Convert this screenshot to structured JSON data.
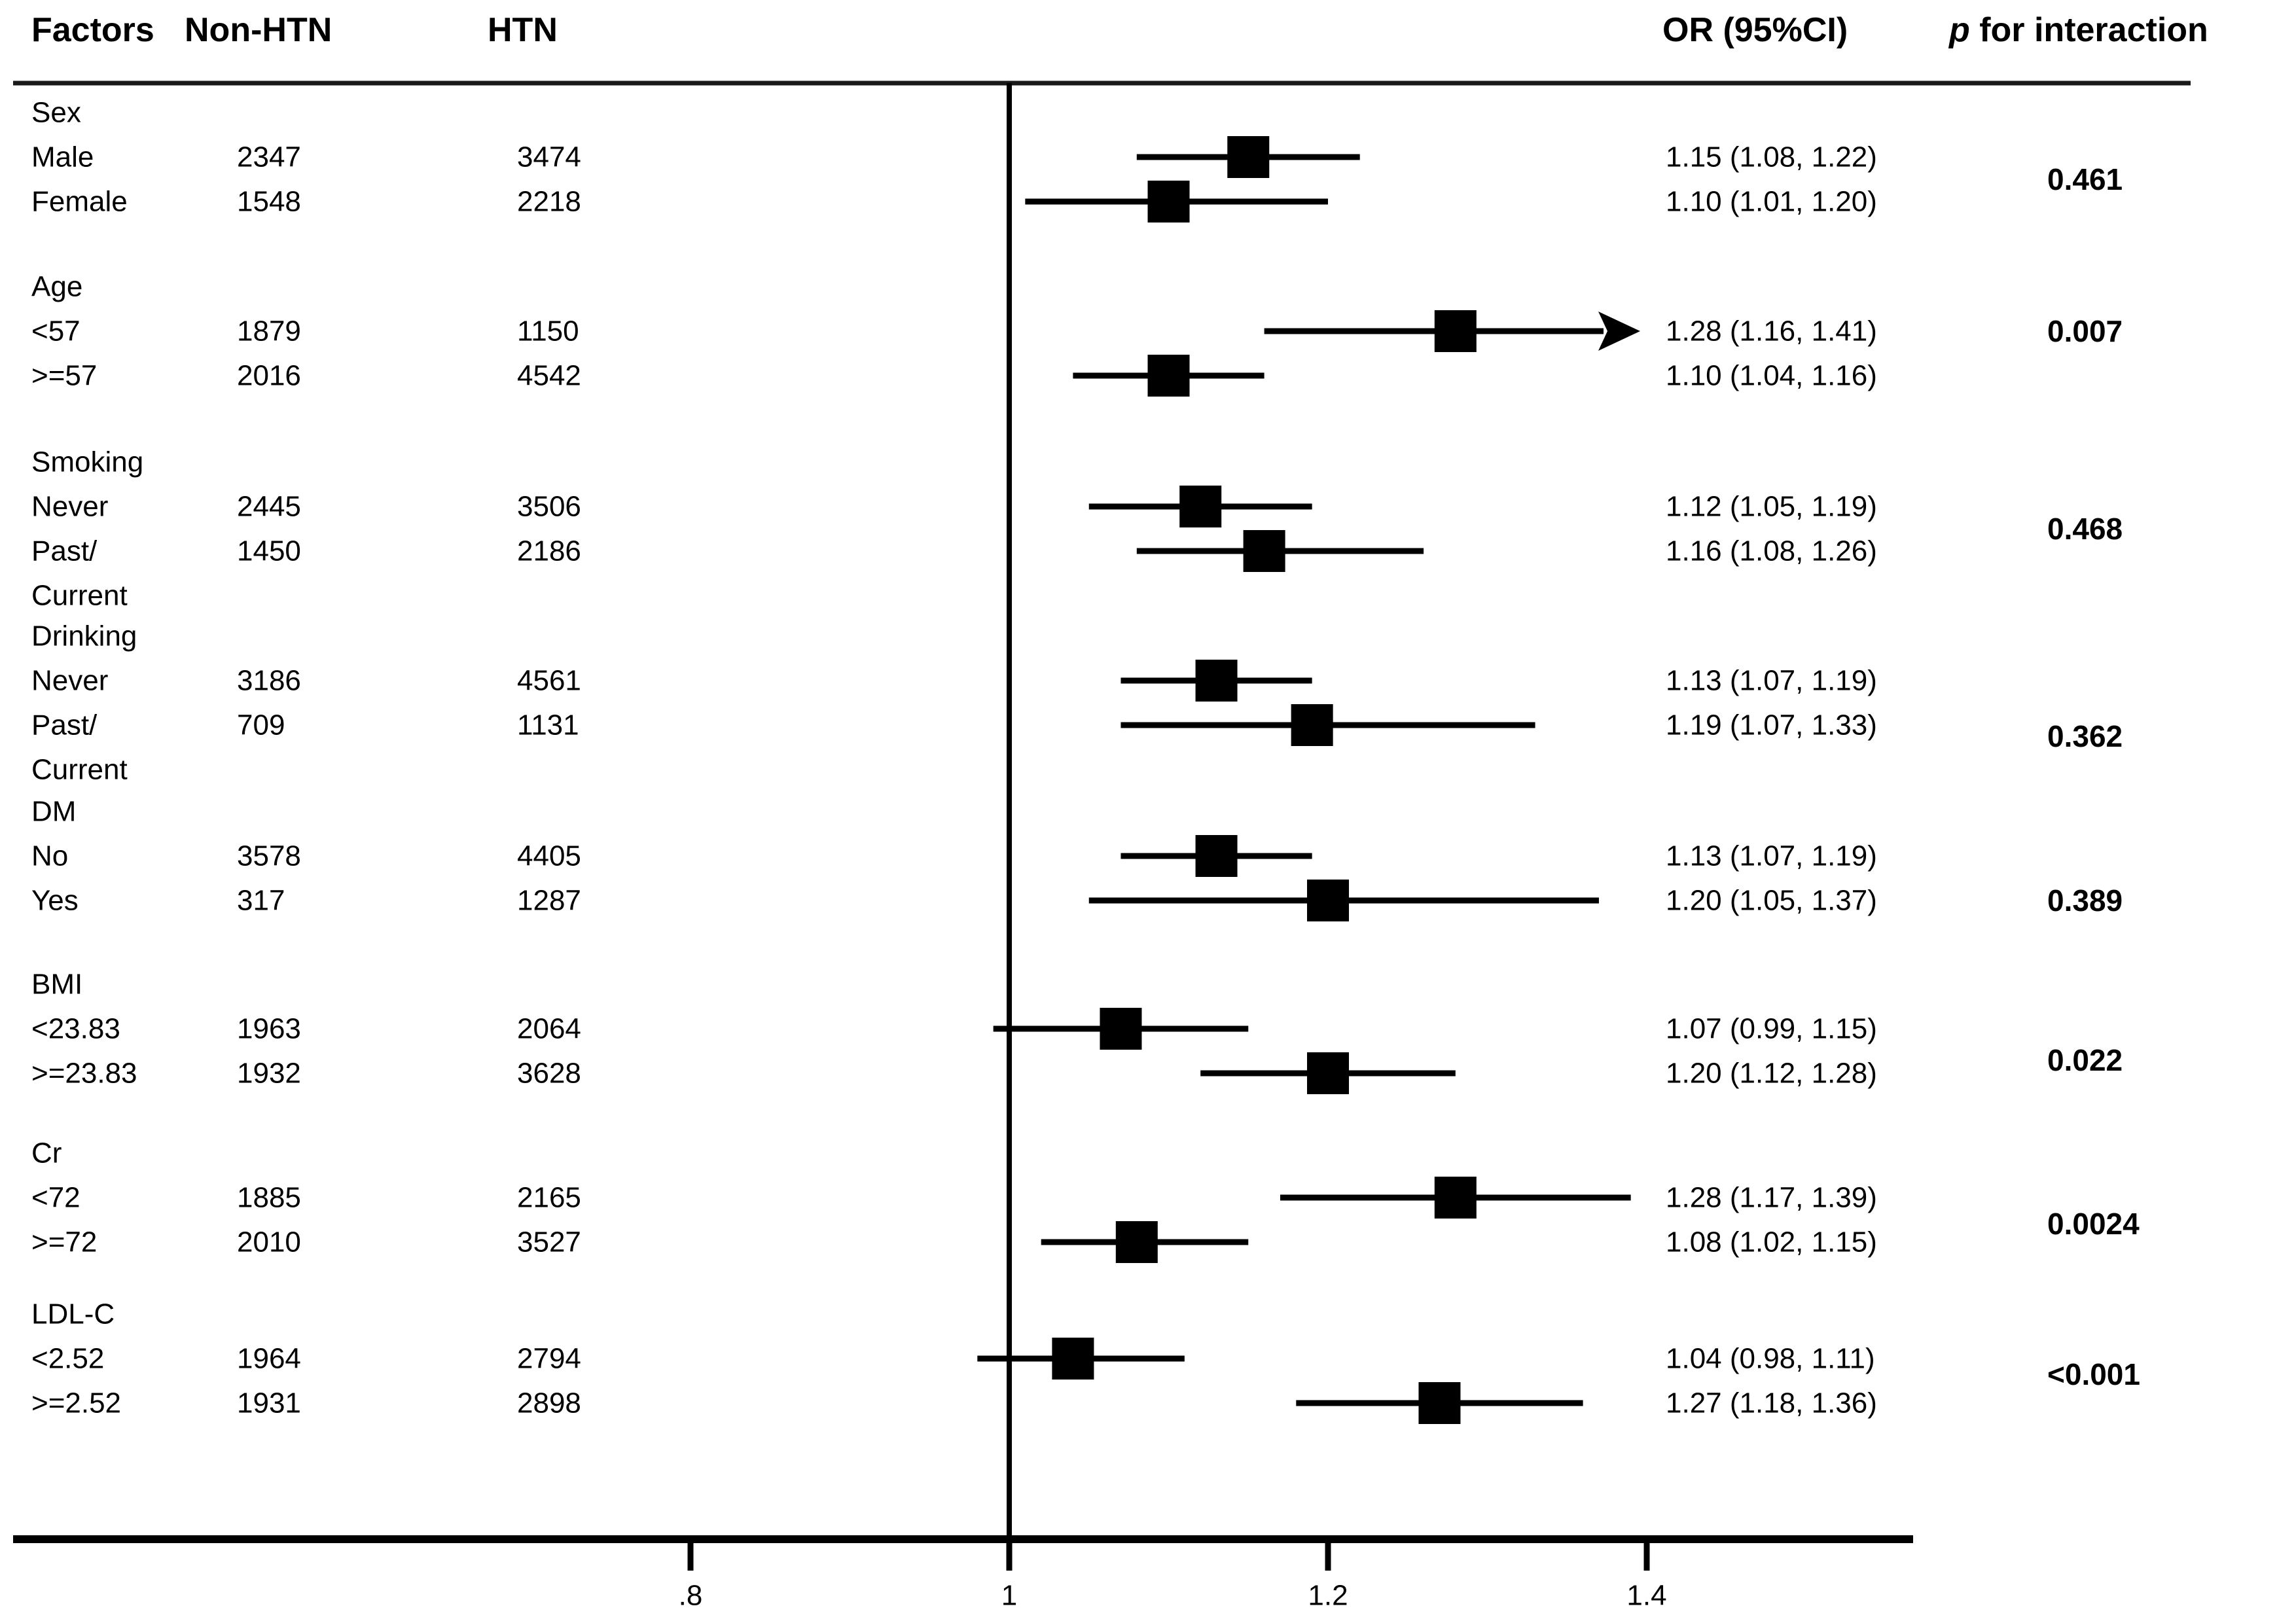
{
  "header": {
    "factors": "Factors",
    "non_htn": "Non-HTN",
    "htn": "HTN",
    "or_ci": "OR (95%CI)",
    "p_italic": "p",
    "p_rest": " for interaction"
  },
  "chart_data": {
    "type": "forest",
    "title": "",
    "xlabel": "",
    "x_axis": {
      "ticks": [
        {
          "label": ".8",
          "value": 0.8
        },
        {
          "label": "1",
          "value": 1.0
        },
        {
          "label": "1.2",
          "value": 1.2
        },
        {
          "label": "1.4",
          "value": 1.4
        }
      ],
      "reference_value": 1.0,
      "xlim": [
        0.62,
        1.57
      ]
    },
    "sections": [
      {
        "label": "Sex",
        "p": "0.461",
        "rows": [
          {
            "label": "Male",
            "non_htn": "2347",
            "htn": "3474",
            "or": 1.15,
            "lo": 1.08,
            "hi": 1.22,
            "or_text": "1.15 (1.08, 1.22)"
          },
          {
            "label": "Female",
            "non_htn": "1548",
            "htn": "2218",
            "or": 1.1,
            "lo": 1.01,
            "hi": 1.2,
            "or_text": "1.10 (1.01, 1.20)"
          }
        ]
      },
      {
        "label": "Age",
        "p": "0.007",
        "rows": [
          {
            "label": "<57",
            "non_htn": "1879",
            "htn": "1150",
            "or": 1.28,
            "lo": 1.16,
            "hi": 1.41,
            "or_text": "1.28 (1.16, 1.41)",
            "arrow": true
          },
          {
            "label": ">=57",
            "non_htn": "2016",
            "htn": "4542",
            "or": 1.1,
            "lo": 1.04,
            "hi": 1.16,
            "or_text": "1.10 (1.04, 1.16)"
          }
        ]
      },
      {
        "label": "Smoking",
        "p": "0.468",
        "rows": [
          {
            "label": "Never",
            "non_htn": "2445",
            "htn": "3506",
            "or": 1.12,
            "lo": 1.05,
            "hi": 1.19,
            "or_text": "1.12 (1.05, 1.19)"
          },
          {
            "label": "Past/",
            "label2": "Current",
            "non_htn": "1450",
            "htn": "2186",
            "or": 1.16,
            "lo": 1.08,
            "hi": 1.26,
            "or_text": "1.16 (1.08, 1.26)"
          }
        ]
      },
      {
        "label": "Drinking",
        "p": "0.362",
        "rows": [
          {
            "label": "Never",
            "non_htn": "3186",
            "htn": "4561",
            "or": 1.13,
            "lo": 1.07,
            "hi": 1.19,
            "or_text": "1.13 (1.07, 1.19)"
          },
          {
            "label": "Past/",
            "label2": "Current",
            "non_htn": "709",
            "htn": "1131",
            "or": 1.19,
            "lo": 1.07,
            "hi": 1.33,
            "or_text": "1.19 (1.07, 1.33)"
          }
        ]
      },
      {
        "label": "DM",
        "p": "0.389",
        "rows": [
          {
            "label": "No",
            "non_htn": "3578",
            "htn": "4405",
            "or": 1.13,
            "lo": 1.07,
            "hi": 1.19,
            "or_text": "1.13 (1.07, 1.19)"
          },
          {
            "label": "Yes",
            "non_htn": "317",
            "htn": "1287",
            "or": 1.2,
            "lo": 1.05,
            "hi": 1.37,
            "or_text": "1.20 (1.05, 1.37)"
          }
        ]
      },
      {
        "label": "BMI",
        "p": "0.022",
        "rows": [
          {
            "label": "<23.83",
            "non_htn": "1963",
            "htn": "2064",
            "or": 1.07,
            "lo": 0.99,
            "hi": 1.15,
            "or_text": "1.07 (0.99, 1.15)"
          },
          {
            "label": ">=23.83",
            "non_htn": "1932",
            "htn": "3628",
            "or": 1.2,
            "lo": 1.12,
            "hi": 1.28,
            "or_text": "1.20 (1.12, 1.28)"
          }
        ]
      },
      {
        "label": "Cr",
        "p": "0.0024",
        "rows": [
          {
            "label": "<72",
            "non_htn": "1885",
            "htn": "2165",
            "or": 1.28,
            "lo": 1.17,
            "hi": 1.39,
            "or_text": "1.28 (1.17, 1.39)"
          },
          {
            "label": ">=72",
            "non_htn": "2010",
            "htn": "3527",
            "or": 1.08,
            "lo": 1.02,
            "hi": 1.15,
            "or_text": "1.08 (1.02, 1.15)"
          }
        ]
      },
      {
        "label": "LDL-C",
        "p": "<0.001",
        "rows": [
          {
            "label": "<2.52",
            "non_htn": "1964",
            "htn": "2794",
            "or": 1.04,
            "lo": 0.98,
            "hi": 1.11,
            "or_text": "1.04 (0.98, 1.11)"
          },
          {
            "label": ">=2.52",
            "non_htn": "1931",
            "htn": "2898",
            "or": 1.27,
            "lo": 1.18,
            "hi": 1.36,
            "or_text": "1.27 (1.18, 1.36)"
          }
        ]
      }
    ],
    "colors": {
      "ink": "#000000",
      "rule": "#1a1a1a"
    },
    "legend": "none",
    "grid": false
  }
}
